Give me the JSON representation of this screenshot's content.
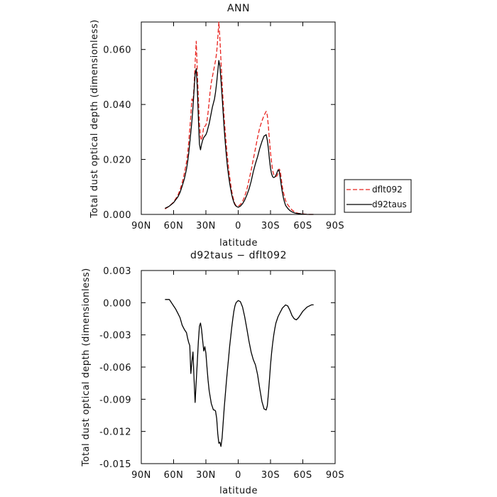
{
  "colors": {
    "dflt092": "#e8231e",
    "d92taus": "#000000",
    "frame": "#000000"
  },
  "chart_data": [
    {
      "type": "line",
      "title": "ANN",
      "xlabel": "latitude",
      "ylabel": "Total dust optical depth (dimensionless)",
      "xlim": [
        90,
        -90
      ],
      "ylim": [
        0,
        0.07
      ],
      "xticks": [
        {
          "value": 90,
          "label": "90N"
        },
        {
          "value": 60,
          "label": "60N"
        },
        {
          "value": 30,
          "label": "30N"
        },
        {
          "value": 0,
          "label": "0"
        },
        {
          "value": -30,
          "label": "30S"
        },
        {
          "value": -60,
          "label": "60S"
        },
        {
          "value": -90,
          "label": "90S"
        }
      ],
      "yticks": [
        {
          "value": 0.0,
          "label": "0.000"
        },
        {
          "value": 0.02,
          "label": "0.020"
        },
        {
          "value": 0.04,
          "label": "0.040"
        },
        {
          "value": 0.06,
          "label": "0.060"
        }
      ],
      "legend_position": "outside-right",
      "series": [
        {
          "name": "dflt092",
          "style": "dashed",
          "color": "#e8231e",
          "x": [
            68,
            64,
            60,
            56,
            54,
            52,
            50,
            48,
            47,
            46,
            45,
            44,
            43,
            42,
            41,
            40,
            39,
            38,
            37,
            36,
            35,
            34,
            33,
            32,
            31,
            30,
            29,
            28,
            27,
            26,
            25,
            24,
            23,
            22,
            21,
            20,
            19,
            18,
            17,
            16,
            15,
            14,
            13,
            12,
            11,
            10,
            9,
            8,
            7,
            6,
            5,
            4,
            3,
            2,
            1,
            0,
            -2,
            -4,
            -6,
            -8,
            -10,
            -12,
            -14,
            -16,
            -18,
            -20,
            -22,
            -24,
            -26,
            -27,
            -28,
            -29,
            -30,
            -31,
            -32,
            -33,
            -34,
            -35,
            -36,
            -37,
            -38,
            -39,
            -40,
            -41,
            -42,
            -43,
            -44,
            -46,
            -48,
            -50,
            -52,
            -54,
            -56,
            -58,
            -60,
            -62,
            -64,
            -66,
            -68,
            -70
          ],
          "y": [
            0.002,
            0.003,
            0.0045,
            0.007,
            0.009,
            0.0115,
            0.015,
            0.019,
            0.022,
            0.026,
            0.031,
            0.036,
            0.042,
            0.041,
            0.046,
            0.055,
            0.063,
            0.052,
            0.042,
            0.033,
            0.028,
            0.027,
            0.029,
            0.032,
            0.032,
            0.0325,
            0.034,
            0.037,
            0.041,
            0.045,
            0.048,
            0.05,
            0.052,
            0.054,
            0.056,
            0.059,
            0.064,
            0.07,
            0.064,
            0.056,
            0.048,
            0.041,
            0.035,
            0.03,
            0.025,
            0.021,
            0.017,
            0.014,
            0.011,
            0.0085,
            0.0065,
            0.005,
            0.0038,
            0.0032,
            0.003,
            0.003,
            0.0036,
            0.0047,
            0.0065,
            0.009,
            0.0125,
            0.016,
            0.02,
            0.024,
            0.028,
            0.0315,
            0.034,
            0.036,
            0.0375,
            0.036,
            0.032,
            0.027,
            0.0225,
            0.019,
            0.016,
            0.0145,
            0.014,
            0.0138,
            0.014,
            0.015,
            0.0165,
            0.016,
            0.013,
            0.01,
            0.008,
            0.0065,
            0.005,
            0.0035,
            0.0025,
            0.0016,
            0.001,
            0.0006,
            0.0004,
            0.0003,
            0.0002,
            0.0001,
            0.0001,
            0.0,
            0.0,
            0.0
          ]
        },
        {
          "name": "d92taus",
          "style": "solid",
          "color": "#000000",
          "x": [
            68,
            64,
            60,
            56,
            54,
            52,
            50,
            48,
            47,
            46,
            45,
            44,
            43,
            42,
            41,
            40,
            39,
            38,
            37,
            36,
            35,
            34,
            33,
            32,
            31,
            30,
            29,
            28,
            27,
            26,
            25,
            24,
            23,
            22,
            21,
            20,
            19,
            18,
            17,
            16,
            15,
            14,
            13,
            12,
            11,
            10,
            9,
            8,
            7,
            6,
            5,
            4,
            3,
            2,
            1,
            0,
            -2,
            -4,
            -6,
            -8,
            -10,
            -12,
            -14,
            -16,
            -18,
            -20,
            -22,
            -24,
            -26,
            -27,
            -28,
            -29,
            -30,
            -31,
            -32,
            -33,
            -34,
            -35,
            -36,
            -37,
            -38,
            -39,
            -40,
            -41,
            -42,
            -43,
            -44,
            -46,
            -48,
            -50,
            -52,
            -54,
            -56,
            -58,
            -60,
            -62,
            -64,
            -66,
            -68,
            -70
          ],
          "y": [
            0.0022,
            0.003,
            0.0043,
            0.0064,
            0.008,
            0.0103,
            0.013,
            0.0165,
            0.019,
            0.022,
            0.026,
            0.03,
            0.034,
            0.039,
            0.045,
            0.051,
            0.053,
            0.046,
            0.035,
            0.0255,
            0.0235,
            0.0255,
            0.027,
            0.028,
            0.0285,
            0.029,
            0.03,
            0.0315,
            0.033,
            0.035,
            0.037,
            0.039,
            0.0405,
            0.042,
            0.0445,
            0.048,
            0.052,
            0.056,
            0.054,
            0.049,
            0.043,
            0.037,
            0.031,
            0.026,
            0.0215,
            0.0175,
            0.0142,
            0.0115,
            0.0092,
            0.0072,
            0.0056,
            0.0044,
            0.0035,
            0.003,
            0.0028,
            0.0026,
            0.003,
            0.0039,
            0.0052,
            0.007,
            0.0092,
            0.012,
            0.0155,
            0.0185,
            0.021,
            0.024,
            0.0265,
            0.0285,
            0.029,
            0.027,
            0.024,
            0.02,
            0.0168,
            0.0148,
            0.0137,
            0.0134,
            0.0136,
            0.0142,
            0.0152,
            0.0162,
            0.016,
            0.0135,
            0.0105,
            0.008,
            0.006,
            0.0045,
            0.0033,
            0.0022,
            0.0014,
            0.0009,
            0.0006,
            0.0004,
            0.0003,
            0.0002,
            0.0001,
            0.0001,
            0.0,
            0.0,
            0.0,
            0.0
          ]
        }
      ]
    },
    {
      "type": "line",
      "title": "d92taus − dflt092",
      "xlabel": "latitude",
      "ylabel": "Total dust optical depth (dimensionless)",
      "xlim": [
        90,
        -90
      ],
      "ylim": [
        -0.015,
        0.003
      ],
      "xticks": [
        {
          "value": 90,
          "label": "90N"
        },
        {
          "value": 60,
          "label": "60N"
        },
        {
          "value": 30,
          "label": "30N"
        },
        {
          "value": 0,
          "label": "0"
        },
        {
          "value": -30,
          "label": "30S"
        },
        {
          "value": -60,
          "label": "60S"
        },
        {
          "value": -90,
          "label": "90S"
        }
      ],
      "yticks": [
        {
          "value": 0.003,
          "label": "0.003"
        },
        {
          "value": 0.0,
          "label": "0.000"
        },
        {
          "value": -0.003,
          "label": "-0.003"
        },
        {
          "value": -0.006,
          "label": "-0.006"
        },
        {
          "value": -0.009,
          "label": "-0.009"
        },
        {
          "value": -0.012,
          "label": "-0.012"
        },
        {
          "value": -0.015,
          "label": "-0.015"
        }
      ],
      "series": [
        {
          "style": "solid",
          "color": "#000000",
          "x": [
            68,
            64,
            62,
            60,
            58,
            56,
            54,
            52,
            50,
            48,
            47,
            46,
            45,
            44,
            43,
            42,
            41,
            40,
            39,
            38,
            37,
            36,
            35,
            34,
            33,
            32,
            31,
            30,
            29,
            28,
            27,
            26,
            25,
            24,
            23,
            22,
            21,
            20,
            19,
            18,
            17,
            16,
            15,
            14,
            13,
            12,
            11,
            10,
            9,
            8,
            7,
            6,
            5,
            4,
            3,
            2,
            1,
            0,
            -2,
            -4,
            -6,
            -8,
            -10,
            -12,
            -14,
            -16,
            -18,
            -20,
            -22,
            -24,
            -26,
            -27,
            -28,
            -29,
            -30,
            -31,
            -32,
            -33,
            -34,
            -35,
            -36,
            -37,
            -38,
            -39,
            -40,
            -41,
            -42,
            -43,
            -44,
            -46,
            -48,
            -50,
            -52,
            -54,
            -56,
            -58,
            -60,
            -62,
            -64,
            -66,
            -68,
            -70
          ],
          "y": [
            0.0003,
            0.0003,
            0.0,
            -0.0003,
            -0.0006,
            -0.001,
            -0.0014,
            -0.0021,
            -0.0025,
            -0.0028,
            -0.0033,
            -0.0037,
            -0.004,
            -0.0066,
            -0.0055,
            -0.0046,
            -0.0071,
            -0.0093,
            -0.0073,
            -0.0055,
            -0.0036,
            -0.0022,
            -0.0019,
            -0.0025,
            -0.0035,
            -0.0045,
            -0.0041,
            -0.0047,
            -0.006,
            -0.0072,
            -0.0082,
            -0.0088,
            -0.0094,
            -0.0097,
            -0.01,
            -0.01,
            -0.0101,
            -0.0108,
            -0.0122,
            -0.0131,
            -0.013,
            -0.0134,
            -0.0126,
            -0.0112,
            -0.0098,
            -0.0086,
            -0.0074,
            -0.0063,
            -0.0052,
            -0.0041,
            -0.0032,
            -0.0023,
            -0.0015,
            -0.0008,
            -0.0003,
            0.0,
            0.0001,
            0.0002,
            0.0001,
            -0.0004,
            -0.0013,
            -0.0024,
            -0.0036,
            -0.0046,
            -0.0053,
            -0.0058,
            -0.0067,
            -0.008,
            -0.0092,
            -0.0099,
            -0.01,
            -0.0096,
            -0.0085,
            -0.0072,
            -0.0058,
            -0.0047,
            -0.0038,
            -0.003,
            -0.0024,
            -0.0019,
            -0.0016,
            -0.0013,
            -0.0011,
            -0.0009,
            -0.0007,
            -0.0005,
            -0.0004,
            -0.0003,
            -0.0002,
            -0.0003,
            -0.0007,
            -0.0012,
            -0.0015,
            -0.0016,
            -0.0014,
            -0.0011,
            -0.0008,
            -0.0006,
            -0.0004,
            -0.0003,
            -0.0002,
            -0.0002
          ]
        }
      ]
    }
  ]
}
